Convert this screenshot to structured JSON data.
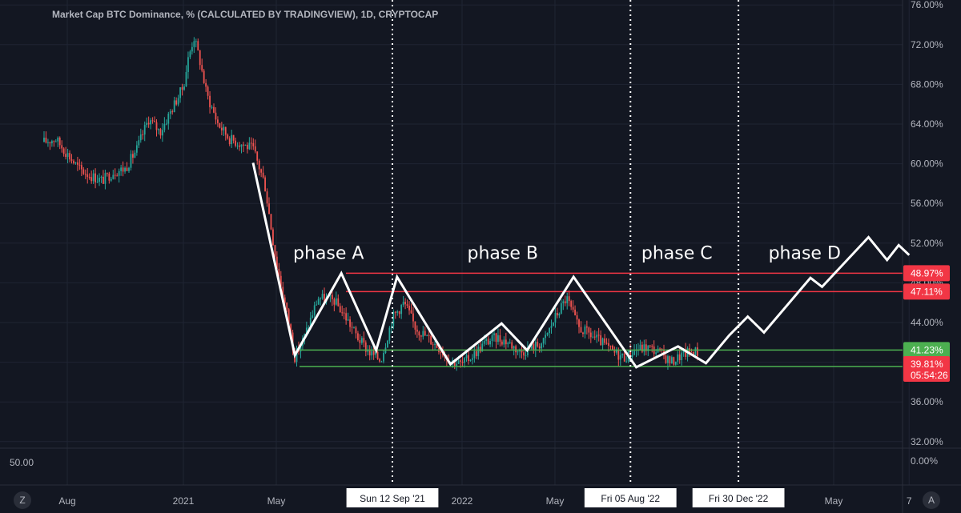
{
  "chart_data": {
    "type": "candlestick",
    "title": "Market Cap BTC Dominance, % (CALCULATED BY TRADINGVIEW), 1D, CRYPTOCAP",
    "ylim": [
      32,
      76
    ],
    "y_ticks": [
      "76.00%",
      "72.00%",
      "68.00%",
      "64.00%",
      "60.00%",
      "56.00%",
      "52.00%",
      "48.00%",
      "44.00%",
      "40.00%",
      "36.00%",
      "32.00%"
    ],
    "x_ticks": [
      {
        "label": "Aug",
        "t": 1.0
      },
      {
        "label": "2021",
        "t": 6.0
      },
      {
        "label": "May",
        "t": 10.0
      },
      {
        "label": "2022",
        "t": 18.0
      },
      {
        "label": "May",
        "t": 22.0
      },
      {
        "label": "May",
        "t": 34.0
      },
      {
        "label": "7",
        "t": 37.25
      }
    ],
    "price_series": {
      "name": "BTC Dominance",
      "points": [
        [
          0.0,
          62.2
        ],
        [
          0.5,
          62.5
        ],
        [
          1.0,
          61.0
        ],
        [
          1.5,
          59.5
        ],
        [
          2.0,
          58.8
        ],
        [
          2.5,
          58.3
        ],
        [
          3.0,
          59.2
        ],
        [
          3.5,
          59.5
        ],
        [
          4.0,
          61.5
        ],
        [
          4.5,
          64.5
        ],
        [
          5.0,
          63.2
        ],
        [
          5.5,
          65.5
        ],
        [
          6.0,
          67.8
        ],
        [
          6.2,
          70.5
        ],
        [
          6.45,
          72.8
        ],
        [
          6.7,
          70.5
        ],
        [
          7.0,
          67.0
        ],
        [
          7.5,
          64.0
        ],
        [
          8.0,
          62.5
        ],
        [
          8.5,
          62.0
        ],
        [
          9.0,
          61.5
        ],
        [
          9.5,
          58.0
        ],
        [
          10.0,
          50.0
        ],
        [
          10.5,
          44.5
        ],
        [
          10.8,
          40.5
        ],
        [
          11.2,
          42.5
        ],
        [
          11.8,
          46.5
        ],
        [
          12.5,
          46.2
        ],
        [
          13.0,
          44.5
        ],
        [
          13.5,
          42.5
        ],
        [
          14.0,
          41.0
        ],
        [
          14.5,
          40.2
        ],
        [
          15.0,
          44.5
        ],
        [
          15.5,
          46.0
        ],
        [
          16.0,
          43.5
        ],
        [
          16.5,
          42.5
        ],
        [
          17.0,
          41.5
        ],
        [
          17.5,
          40.2
        ],
        [
          18.0,
          39.8
        ],
        [
          18.5,
          40.8
        ],
        [
          19.0,
          42.0
        ],
        [
          19.5,
          42.5
        ],
        [
          20.0,
          42.0
        ],
        [
          20.5,
          41.0
        ],
        [
          21.0,
          41.5
        ],
        [
          21.5,
          42.0
        ],
        [
          22.0,
          44.5
        ],
        [
          22.5,
          46.5
        ],
        [
          23.0,
          43.5
        ],
        [
          23.5,
          42.8
        ],
        [
          24.0,
          42.0
        ],
        [
          24.5,
          41.0
        ],
        [
          25.0,
          40.5
        ],
        [
          25.5,
          41.3
        ],
        [
          26.0,
          41.5
        ],
        [
          26.5,
          41.0
        ],
        [
          27.0,
          40.0
        ],
        [
          27.5,
          40.8
        ],
        [
          28.0,
          41.2
        ],
        [
          28.2,
          40.9
        ]
      ]
    },
    "projection_path": {
      "points": [
        [
          9.0,
          60.1
        ],
        [
          10.8,
          40.7
        ],
        [
          12.8,
          48.97
        ],
        [
          14.3,
          41.2
        ],
        [
          15.2,
          48.6
        ],
        [
          17.5,
          39.8
        ],
        [
          19.0,
          42.6
        ],
        [
          19.7,
          43.9
        ],
        [
          20.8,
          41.2
        ],
        [
          22.8,
          48.6
        ],
        [
          25.5,
          39.5
        ],
        [
          27.3,
          41.6
        ],
        [
          28.5,
          39.9
        ],
        [
          29.5,
          42.7
        ],
        [
          30.3,
          44.6
        ],
        [
          31.0,
          43.0
        ],
        [
          33.0,
          48.5
        ],
        [
          33.5,
          47.6
        ],
        [
          35.5,
          52.6
        ],
        [
          36.3,
          50.3
        ],
        [
          36.8,
          51.8
        ],
        [
          37.25,
          50.8
        ]
      ]
    },
    "horizontal_levels": [
      {
        "value": 48.97,
        "label": "48.97%",
        "color": "#f23645",
        "t_start": 13.0
      },
      {
        "value": 47.11,
        "label": "47.11%",
        "color": "#f23645",
        "t_start": 13.0
      },
      {
        "value": 41.23,
        "label": "41.23%",
        "color": "#4caf50",
        "t_start": 11.0
      },
      {
        "value": 39.57,
        "label": "39.57%",
        "color": "#4caf50",
        "t_start": 11.0
      }
    ],
    "current_price": {
      "value": 39.81,
      "label": "39.81%",
      "countdown": "05:54:26",
      "color": "#f23645"
    },
    "vertical_markers": [
      {
        "t": 15.0,
        "label": "Sun 12 Sep '21"
      },
      {
        "t": 25.25,
        "label": "Fri 05 Aug '22"
      },
      {
        "t": 29.9,
        "label": "Fri 30 Dec '22"
      }
    ],
    "annotations": [
      {
        "text": "phase A",
        "t": 12.25,
        "y": 50.4
      },
      {
        "text": "phase B",
        "t": 19.75,
        "y": 50.4
      },
      {
        "text": "phase C",
        "t": 27.25,
        "y": 50.4
      },
      {
        "text": "phase D",
        "t": 32.75,
        "y": 50.4
      }
    ],
    "sub_pane": {
      "left_value": "50.00",
      "right_value": "0.00%"
    },
    "colors": {
      "background": "#131722",
      "grid": "#1f2433",
      "text": "#b2b5be",
      "candle_up": "#26a69a",
      "candle_down": "#ef5350",
      "projection": "#ffffff",
      "marker_label_bg": "#ffffff",
      "marker_label_text": "#131722"
    }
  },
  "controls": {
    "left_corner": "Z",
    "right_corner": "A"
  }
}
